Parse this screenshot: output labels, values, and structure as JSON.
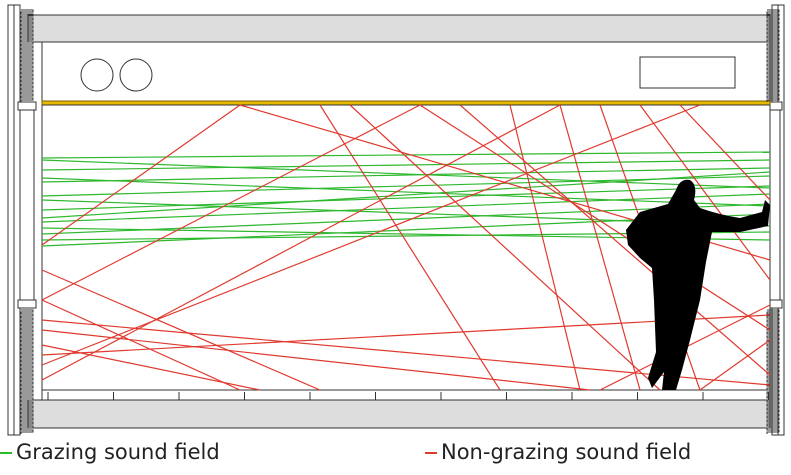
{
  "legend": [
    "Grazing sound field",
    "Non-grazing sound field"
  ]
}
